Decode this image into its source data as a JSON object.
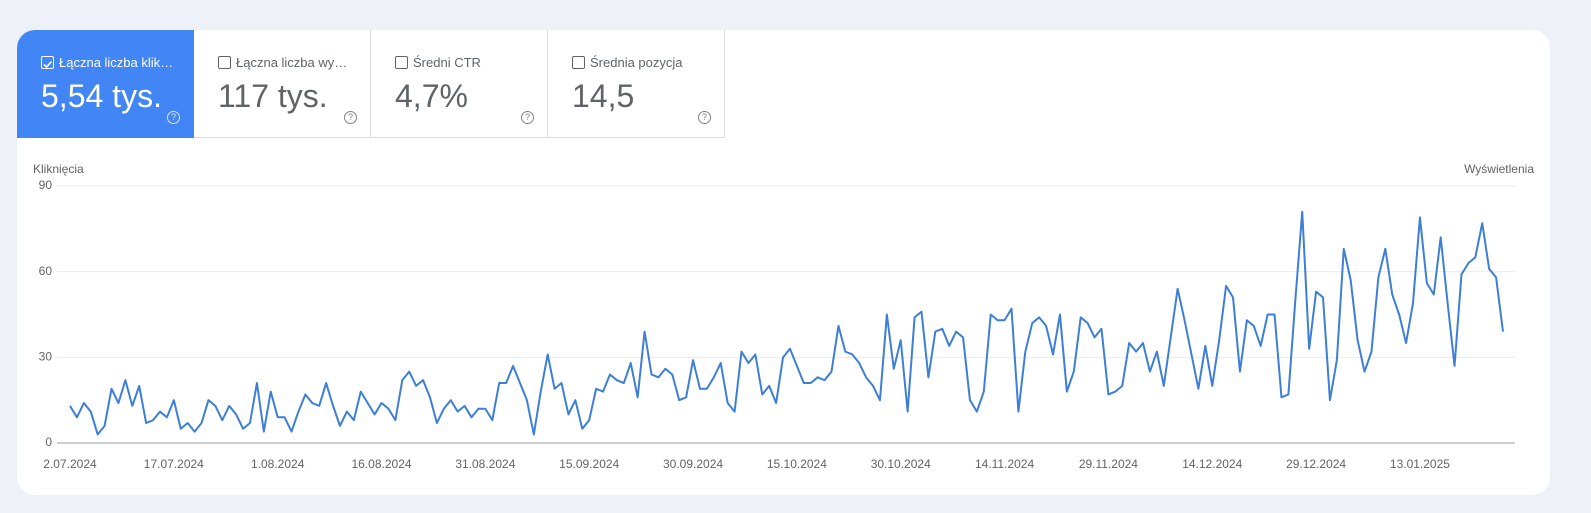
{
  "metrics": [
    {
      "label": "Łączna liczba klik…",
      "value": "5,54 tys."
    },
    {
      "label": "Łączna liczba wy…",
      "value": "117 tys."
    },
    {
      "label": "Średni CTR",
      "value": "4,7%"
    },
    {
      "label": "Średnia pozycja",
      "value": "14,5"
    }
  ],
  "chart_data": {
    "type": "line",
    "y_label": "Kliknięcia",
    "y2_label": "Wyświetlenia",
    "color": "#3d7fd6",
    "grid": true,
    "ylim": [
      0,
      90
    ],
    "yticks": [
      0,
      30,
      60,
      90
    ],
    "categories": [
      "2.07.2024",
      null,
      null,
      null,
      null,
      null,
      null,
      null,
      null,
      null,
      null,
      null,
      null,
      null,
      null,
      "17.07.2024",
      null,
      null,
      null,
      null,
      null,
      null,
      null,
      null,
      null,
      null,
      null,
      null,
      null,
      null,
      "1.08.2024",
      null,
      null,
      null,
      null,
      null,
      null,
      null,
      null,
      null,
      null,
      null,
      null,
      null,
      null,
      "16.08.2024",
      null,
      null,
      null,
      null,
      null,
      null,
      null,
      null,
      null,
      null,
      null,
      null,
      null,
      null,
      "31.08.2024",
      null,
      null,
      null,
      null,
      null,
      null,
      null,
      null,
      null,
      null,
      null,
      null,
      null,
      null,
      "15.09.2024",
      null,
      null,
      null,
      null,
      null,
      null,
      null,
      null,
      null,
      null,
      null,
      null,
      null,
      null,
      "30.09.2024",
      null,
      null,
      null,
      null,
      null,
      null,
      null,
      null,
      null,
      null,
      null,
      null,
      null,
      null,
      "15.10.2024",
      null,
      null,
      null,
      null,
      null,
      null,
      null,
      null,
      null,
      null,
      null,
      null,
      null,
      null,
      "30.10.2024",
      null,
      null,
      null,
      null,
      null,
      null,
      null,
      null,
      null,
      null,
      null,
      null,
      null,
      null,
      "14.11.2024",
      null,
      null,
      null,
      null,
      null,
      null,
      null,
      null,
      null,
      null,
      null,
      null,
      null,
      null,
      "29.11.2024",
      null,
      null,
      null,
      null,
      null,
      null,
      null,
      null,
      null,
      null,
      null,
      null,
      null,
      null,
      "14.12.2024",
      null,
      null,
      null,
      null,
      null,
      null,
      null,
      null,
      null,
      null,
      null,
      null,
      null,
      null,
      "29.12.2024",
      null,
      null,
      null,
      null,
      null,
      null,
      null,
      null,
      null,
      null,
      null,
      null,
      null,
      null,
      "13.01.2025",
      null,
      null,
      null,
      null,
      null,
      null,
      null,
      null,
      null,
      null,
      null,
      null
    ],
    "values": [
      13,
      9,
      14,
      11,
      3,
      6,
      19,
      14,
      22,
      13,
      20,
      7,
      8,
      11,
      9,
      15,
      5,
      7,
      4,
      7,
      15,
      13,
      8,
      13,
      10,
      5,
      7,
      21,
      4,
      18,
      9,
      9,
      4,
      11,
      17,
      14,
      13,
      21,
      13,
      6,
      11,
      8,
      18,
      14,
      10,
      14,
      12,
      8,
      22,
      25,
      20,
      22,
      16,
      7,
      12,
      15,
      11,
      13,
      9,
      12,
      12,
      8,
      21,
      21,
      27,
      21,
      15,
      3,
      18,
      31,
      19,
      21,
      10,
      15,
      5,
      8,
      19,
      18,
      24,
      22,
      21,
      28,
      16,
      39,
      24,
      23,
      26,
      24,
      15,
      16,
      29,
      19,
      19,
      23,
      28,
      14,
      11,
      32,
      28,
      31,
      17,
      20,
      14,
      30,
      33,
      27,
      21,
      21,
      23,
      22,
      25,
      41,
      32,
      31,
      28,
      23,
      20,
      15,
      45,
      26,
      36,
      11,
      44,
      46,
      23,
      39,
      40,
      34,
      39,
      37,
      15,
      11,
      18,
      45,
      43,
      43,
      47,
      11,
      32,
      42,
      44,
      41,
      31,
      45,
      18,
      25,
      44,
      42,
      37,
      40,
      17,
      18,
      20,
      35,
      32,
      35,
      25,
      32,
      20,
      37,
      54,
      43,
      31,
      19,
      34,
      20,
      36,
      55,
      51,
      25,
      43,
      41,
      34,
      45,
      45,
      16,
      17,
      50,
      81,
      33,
      53,
      51,
      15,
      29,
      68,
      57,
      36,
      25,
      32,
      58,
      68,
      52,
      45,
      35,
      49,
      79,
      56,
      52,
      72,
      49,
      27,
      59,
      63,
      65,
      77,
      61,
      58,
      39
    ]
  }
}
